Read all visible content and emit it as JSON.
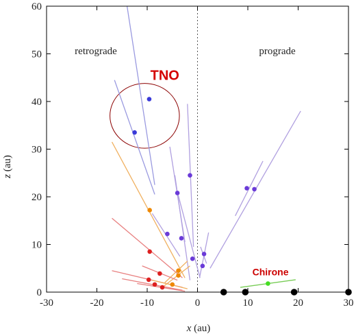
{
  "chart_data": {
    "type": "scatter",
    "xlabel_var": "x",
    "xlabel_unit": " (au)",
    "ylabel_var": "z",
    "ylabel_unit": " (au)",
    "xlim": [
      -30,
      30
    ],
    "ylim": [
      0,
      60
    ],
    "xticks": [
      -30,
      -20,
      -10,
      0,
      10,
      20,
      30
    ],
    "yticks": [
      0,
      10,
      20,
      30,
      40,
      50,
      60
    ],
    "grid": false,
    "region_labels": {
      "left": "retrograde",
      "right": "prograde"
    },
    "annotations": [
      {
        "text": "TNO",
        "x": -6.5,
        "y": 44.5,
        "color": "#d40000",
        "style": "tno"
      },
      {
        "text": "Chirone",
        "x": 14.5,
        "y": 3.5,
        "color": "#cc0000",
        "style": "chirone"
      }
    ],
    "highlight_circle": {
      "cx": -10.5,
      "cy": 37,
      "rx": 6.9,
      "ry": 6.8,
      "color": "#8b0000"
    },
    "planets": {
      "color": "#000000",
      "x": [
        5.2,
        9.5,
        19.2,
        30.0
      ],
      "y": [
        0,
        0,
        0,
        0
      ]
    },
    "objects": [
      {
        "x": -9.6,
        "y": 40.5,
        "x1": -14,
        "y1": 60,
        "x2": -8.5,
        "y2": 22.5,
        "color": "#3a3ad8",
        "line_color": "#9a9ae0"
      },
      {
        "x": -12.5,
        "y": 33.5,
        "x1": -16.5,
        "y1": 44.5,
        "x2": -8.5,
        "y2": 20.5,
        "color": "#3a3ad8",
        "line_color": "#9a9ae0"
      },
      {
        "x": -1.5,
        "y": 24.5,
        "x1": -2,
        "y1": 39.5,
        "x2": -0.8,
        "y2": 9.5,
        "color": "#6a3ad8",
        "line_color": "#b0a0e0"
      },
      {
        "x": -4.0,
        "y": 20.8,
        "x1": -5.5,
        "y1": 30.5,
        "x2": -2.5,
        "y2": 10.5,
        "color": "#6a3ad8",
        "line_color": "#b0a0e0"
      },
      {
        "x": -6.0,
        "y": 12.2,
        "x1": -9,
        "y1": 16.5,
        "x2": -3.5,
        "y2": 7.5,
        "color": "#6a3ad8",
        "line_color": "#b0a0e0"
      },
      {
        "x": -3.2,
        "y": 11.3,
        "x1": -4.5,
        "y1": 24.5,
        "x2": -1.5,
        "y2": 2.5,
        "color": "#6a3ad8",
        "line_color": "#b0a0e0"
      },
      {
        "x": -1.0,
        "y": 7.0,
        "x1": -4,
        "y1": 21,
        "x2": 0.5,
        "y2": 3,
        "color": "#6a3ad8",
        "line_color": "#b0a0e0"
      },
      {
        "x": 1.3,
        "y": 8.0,
        "x1": 0.6,
        "y1": 9.5,
        "x2": 1.8,
        "y2": 6.0,
        "color": "#6a3ad8",
        "line_color": "#b0a0e0"
      },
      {
        "x": 1.0,
        "y": 5.5,
        "x1": 0.4,
        "y1": 3.0,
        "x2": 2.2,
        "y2": 12.5,
        "color": "#6a3ad8",
        "line_color": "#b0a0e0"
      },
      {
        "x": 9.8,
        "y": 21.8,
        "x1": 7.5,
        "y1": 16,
        "x2": 13,
        "y2": 27.5,
        "color": "#6a3ad8",
        "line_color": "#b0a0e0"
      },
      {
        "x": 11.3,
        "y": 21.6,
        "x1": 2.5,
        "y1": 5,
        "x2": 20.5,
        "y2": 38,
        "color": "#6a3ad8",
        "line_color": "#b0a0e0"
      },
      {
        "x": -9.5,
        "y": 17.2,
        "x1": -17,
        "y1": 31.5,
        "x2": -2.5,
        "y2": 3,
        "color": "#ee8800",
        "line_color": "#f0b060"
      },
      {
        "x": -9.5,
        "y": 8.5,
        "x1": -17,
        "y1": 15.5,
        "x2": -3,
        "y2": 3,
        "color": "#dd2020",
        "line_color": "#e88080"
      },
      {
        "x": -3.8,
        "y": 4.5,
        "x1": -6.5,
        "y1": 2,
        "x2": -2,
        "y2": 6.5,
        "color": "#ee8800",
        "line_color": "#f0b060"
      },
      {
        "x": -3.8,
        "y": 3.5,
        "x1": -7,
        "y1": 1,
        "x2": -1.5,
        "y2": 5.5,
        "color": "#ee8800",
        "line_color": "#f0b060"
      },
      {
        "x": -7.5,
        "y": 3.9,
        "x1": -11,
        "y1": 5.5,
        "x2": -4,
        "y2": 2.5,
        "color": "#dd2020",
        "line_color": "#e88080"
      },
      {
        "x": -9.7,
        "y": 2.6,
        "x1": -17,
        "y1": 4.5,
        "x2": -3,
        "y2": 1,
        "color": "#dd2020",
        "line_color": "#e88080"
      },
      {
        "x": -8.5,
        "y": 1.6,
        "x1": -15,
        "y1": 2.8,
        "x2": -3,
        "y2": 0.4,
        "color": "#dd2020",
        "line_color": "#e88080"
      },
      {
        "x": -7.0,
        "y": 1.0,
        "x1": -12,
        "y1": 1.8,
        "x2": -2.5,
        "y2": 0.2,
        "color": "#dd2020",
        "line_color": "#e88080"
      },
      {
        "x": -5.0,
        "y": 1.6,
        "x1": -9,
        "y1": 2.5,
        "x2": -2,
        "y2": 0.7,
        "color": "#ee8800",
        "line_color": "#f0b060"
      },
      {
        "x": 14.0,
        "y": 1.8,
        "x1": 8.5,
        "y1": 1.0,
        "x2": 19.5,
        "y2": 2.6,
        "color": "#44dd22",
        "line_color": "#77cc55"
      }
    ]
  }
}
